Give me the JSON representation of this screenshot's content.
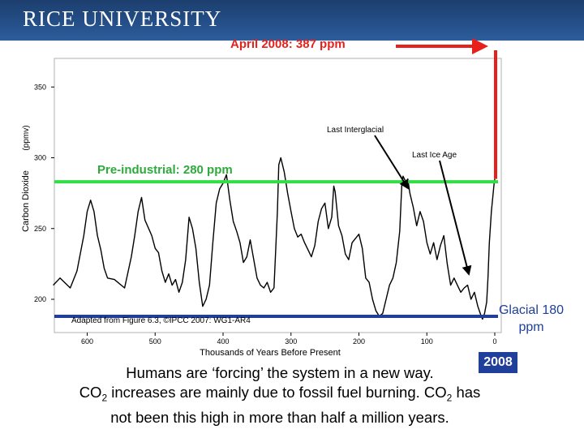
{
  "header": {
    "logo_text": "RICE UNIVERSITY"
  },
  "callout_top": "April 2008: 387 ppm",
  "glacial_label_line1": "Glacial 180",
  "glacial_label_line2": "ppm",
  "year_badge": "2008",
  "body_text": {
    "line1": "Humans are ‘forcing’ the system in a new way.",
    "line2_a": "CO",
    "line2_sub1": "2",
    "line2_b": " increases are mainly due to fossil fuel burning.  CO",
    "line2_sub2": "2",
    "line2_c": " has",
    "line3": "not been this high in more than half a million years."
  },
  "colors": {
    "header": "#25508a",
    "callout_red": "#e8201c",
    "preindustrial_line": "#33dd44",
    "glacial_line": "#1f3f9a"
  },
  "chart_data": {
    "type": "line",
    "xlabel": "Thousands of Years Before Present",
    "ylabel": "Carbon Dioxide",
    "ylabel_units": "(ppmv)",
    "xlim": [
      650,
      0
    ],
    "ylim": [
      190,
      360
    ],
    "x_ticks": [
      600,
      500,
      400,
      300,
      200,
      100,
      0
    ],
    "y_ticks": [
      350,
      300,
      250,
      200
    ],
    "source_note": "Adapted from Figure 6.3, ©IPCC 2007: WG1-AR4",
    "annotations": {
      "last_interglacial": "Last Interglacial",
      "last_ice_age": "Last Ice Age",
      "preindustrial": "Pre-industrial: 280 ppm"
    },
    "reference_lines": [
      {
        "name": "Pre-industrial: 280 ppm",
        "y": 283
      },
      {
        "name": "Glacial 180 ppm",
        "y": 188
      }
    ],
    "series": [
      {
        "values_x": [
          650,
          640,
          625,
          615,
          605,
          600,
          595,
          590,
          585,
          580,
          575,
          570,
          560,
          545,
          535,
          530,
          525,
          520,
          515,
          505,
          500,
          495,
          490,
          485,
          480,
          475,
          470,
          465,
          460,
          455,
          450,
          445,
          440,
          435,
          430,
          425,
          420,
          415,
          410,
          405,
          400,
          395,
          390,
          385,
          380,
          375,
          370,
          365,
          360,
          350,
          345,
          340,
          335,
          330,
          325,
          322,
          320,
          318,
          315,
          310,
          305,
          300,
          295,
          290,
          285,
          280,
          270,
          265,
          260,
          255,
          250,
          245,
          240,
          237,
          235,
          230,
          225,
          220,
          215,
          210,
          200,
          195,
          190,
          185,
          180,
          175,
          170,
          165,
          160,
          155,
          150,
          145,
          140,
          137,
          135,
          133,
          130,
          128,
          125,
          120,
          115,
          110,
          105,
          100,
          95,
          90,
          85,
          80,
          75,
          70,
          65,
          60,
          55,
          50,
          45,
          40,
          35,
          30,
          25,
          20,
          18,
          15,
          12,
          10,
          8,
          5,
          3,
          1,
          0
        ],
        "values_y": [
          210,
          215,
          208,
          220,
          245,
          262,
          270,
          262,
          245,
          235,
          222,
          215,
          214,
          208,
          230,
          245,
          262,
          272,
          256,
          245,
          236,
          233,
          220,
          212,
          218,
          210,
          214,
          205,
          212,
          228,
          258,
          250,
          236,
          212,
          195,
          200,
          210,
          240,
          268,
          278,
          282,
          288,
          270,
          255,
          248,
          240,
          226,
          230,
          242,
          215,
          210,
          208,
          212,
          205,
          208,
          240,
          262,
          295,
          300,
          290,
          275,
          262,
          250,
          244,
          246,
          240,
          230,
          238,
          255,
          264,
          268,
          250,
          258,
          280,
          276,
          252,
          245,
          232,
          228,
          240,
          246,
          236,
          215,
          212,
          200,
          192,
          188,
          190,
          200,
          210,
          215,
          226,
          248,
          280,
          287,
          285,
          282,
          285,
          275,
          265,
          252,
          262,
          255,
          240,
          232,
          240,
          228,
          238,
          245,
          225,
          210,
          215,
          210,
          205,
          208,
          210,
          200,
          205,
          195,
          188,
          186,
          190,
          198,
          215,
          240,
          262,
          272,
          282,
          285
        ]
      },
      {
        "name": "April 2008: 387 ppm",
        "values_x": [
          0,
          0
        ],
        "values_y": [
          285,
          387
        ]
      }
    ]
  }
}
